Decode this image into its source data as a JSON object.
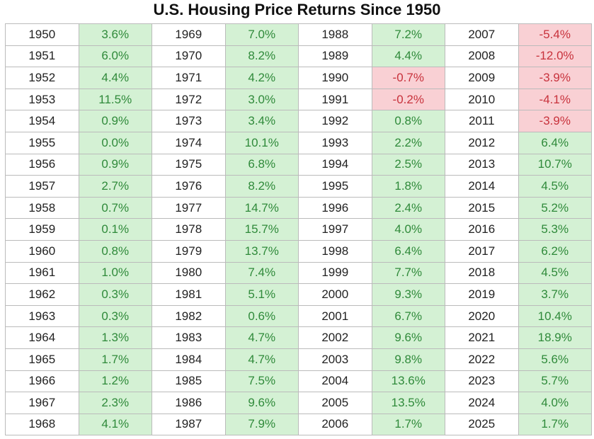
{
  "header": {
    "title": "U.S. Housing Price Returns Since 1950"
  },
  "colors": {
    "positive_fill": "#d4f1d4",
    "positive_text": "#2f8a3a",
    "negative_fill": "#f9d0d4",
    "negative_text": "#c8323c"
  },
  "table": {
    "rows": [
      [
        "1950",
        "3.6%",
        "1969",
        "7.0%",
        "1988",
        "7.2%",
        "2007",
        "-5.4%"
      ],
      [
        "1951",
        "6.0%",
        "1970",
        "8.2%",
        "1989",
        "4.4%",
        "2008",
        "-12.0%"
      ],
      [
        "1952",
        "4.4%",
        "1971",
        "4.2%",
        "1990",
        "-0.7%",
        "2009",
        "-3.9%"
      ],
      [
        "1953",
        "11.5%",
        "1972",
        "3.0%",
        "1991",
        "-0.2%",
        "2010",
        "-4.1%"
      ],
      [
        "1954",
        "0.9%",
        "1973",
        "3.4%",
        "1992",
        "0.8%",
        "2011",
        "-3.9%"
      ],
      [
        "1955",
        "0.0%",
        "1974",
        "10.1%",
        "1993",
        "2.2%",
        "2012",
        "6.4%"
      ],
      [
        "1956",
        "0.9%",
        "1975",
        "6.8%",
        "1994",
        "2.5%",
        "2013",
        "10.7%"
      ],
      [
        "1957",
        "2.7%",
        "1976",
        "8.2%",
        "1995",
        "1.8%",
        "2014",
        "4.5%"
      ],
      [
        "1958",
        "0.7%",
        "1977",
        "14.7%",
        "1996",
        "2.4%",
        "2015",
        "5.2%"
      ],
      [
        "1959",
        "0.1%",
        "1978",
        "15.7%",
        "1997",
        "4.0%",
        "2016",
        "5.3%"
      ],
      [
        "1960",
        "0.8%",
        "1979",
        "13.7%",
        "1998",
        "6.4%",
        "2017",
        "6.2%"
      ],
      [
        "1961",
        "1.0%",
        "1980",
        "7.4%",
        "1999",
        "7.7%",
        "2018",
        "4.5%"
      ],
      [
        "1962",
        "0.3%",
        "1981",
        "5.1%",
        "2000",
        "9.3%",
        "2019",
        "3.7%"
      ],
      [
        "1963",
        "0.3%",
        "1982",
        "0.6%",
        "2001",
        "6.7%",
        "2020",
        "10.4%"
      ],
      [
        "1964",
        "1.3%",
        "1983",
        "4.7%",
        "2002",
        "9.6%",
        "2021",
        "18.9%"
      ],
      [
        "1965",
        "1.7%",
        "1984",
        "4.7%",
        "2003",
        "9.8%",
        "2022",
        "5.6%"
      ],
      [
        "1966",
        "1.2%",
        "1985",
        "7.5%",
        "2004",
        "13.6%",
        "2023",
        "5.7%"
      ],
      [
        "1967",
        "2.3%",
        "1986",
        "9.6%",
        "2005",
        "13.5%",
        "2024",
        "4.0%"
      ],
      [
        "1968",
        "4.1%",
        "1987",
        "7.9%",
        "2006",
        "1.7%",
        "2025",
        "1.7%"
      ]
    ]
  }
}
